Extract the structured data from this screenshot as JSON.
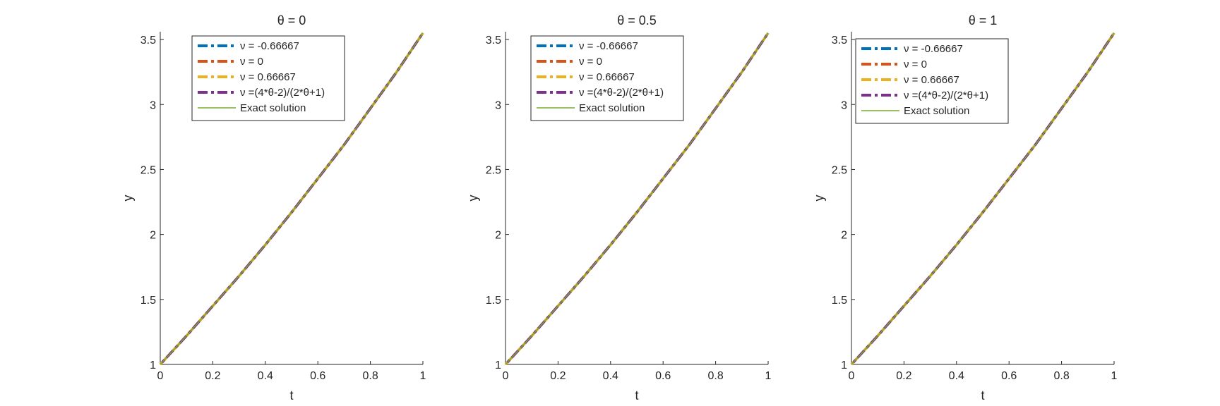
{
  "chart_data": [
    {
      "type": "line",
      "title": "θ = 0",
      "xlabel": "t",
      "ylabel": "y",
      "xlim": [
        0,
        1
      ],
      "ylim": [
        1,
        3.56
      ],
      "xticks": [
        0,
        0.2,
        0.4,
        0.6,
        0.8,
        1
      ],
      "xtick_labels": [
        "0",
        "0.2",
        "0.4",
        "0.6",
        "0.8",
        "1"
      ],
      "yticks": [
        1,
        1.5,
        2,
        2.5,
        3,
        3.5
      ],
      "ytick_labels": [
        "1",
        "1.5",
        "2",
        "2.5",
        "3",
        "3.5"
      ],
      "grid": false,
      "legend_position": "top",
      "x": [
        0,
        0.1,
        0.2,
        0.3,
        0.4,
        0.5,
        0.6,
        0.7,
        0.8,
        0.9,
        1.0
      ],
      "series": [
        {
          "name": "ν = -0.66667",
          "color": "#0072BD",
          "line_style": "dash-dot",
          "values": [
            1.0,
            1.22,
            1.45,
            1.68,
            1.92,
            2.17,
            2.43,
            2.69,
            2.97,
            3.25,
            3.55
          ]
        },
        {
          "name": "ν = 0",
          "color": "#D95319",
          "line_style": "dash-dot",
          "values": [
            1.0,
            1.22,
            1.45,
            1.68,
            1.92,
            2.17,
            2.43,
            2.69,
            2.97,
            3.25,
            3.55
          ]
        },
        {
          "name": "ν = 0.66667",
          "color": "#EDB120",
          "line_style": "dash-dot",
          "values": [
            1.0,
            1.22,
            1.45,
            1.68,
            1.92,
            2.17,
            2.43,
            2.69,
            2.97,
            3.25,
            3.55
          ]
        },
        {
          "name": "ν =(4*θ-2)/(2*θ+1)",
          "color": "#7E2F8E",
          "line_style": "dash-dot",
          "values": [
            1.0,
            1.22,
            1.45,
            1.68,
            1.92,
            2.17,
            2.43,
            2.69,
            2.97,
            3.25,
            3.55
          ]
        },
        {
          "name": "Exact solution",
          "color": "#77AC30",
          "line_style": "solid",
          "values": [
            1.0,
            1.22,
            1.45,
            1.68,
            1.92,
            2.17,
            2.43,
            2.69,
            2.97,
            3.25,
            3.55
          ]
        }
      ]
    },
    {
      "type": "line",
      "title": "θ = 0.5",
      "xlabel": "t",
      "ylabel": "y",
      "xlim": [
        0,
        1
      ],
      "ylim": [
        1,
        3.56
      ],
      "xticks": [
        0,
        0.2,
        0.4,
        0.6,
        0.8,
        1
      ],
      "xtick_labels": [
        "0",
        "0.2",
        "0.4",
        "0.6",
        "0.8",
        "1"
      ],
      "yticks": [
        1,
        1.5,
        2,
        2.5,
        3,
        3.5
      ],
      "ytick_labels": [
        "1",
        "1.5",
        "2",
        "2.5",
        "3",
        "3.5"
      ],
      "grid": false,
      "legend_position": "top",
      "x": [
        0,
        0.1,
        0.2,
        0.3,
        0.4,
        0.5,
        0.6,
        0.7,
        0.8,
        0.9,
        1.0
      ],
      "series": [
        {
          "name": "ν = -0.66667",
          "color": "#0072BD",
          "line_style": "dash-dot",
          "values": [
            1.0,
            1.22,
            1.45,
            1.68,
            1.92,
            2.17,
            2.43,
            2.69,
            2.97,
            3.25,
            3.55
          ]
        },
        {
          "name": "ν = 0",
          "color": "#D95319",
          "line_style": "dash-dot",
          "values": [
            1.0,
            1.22,
            1.45,
            1.68,
            1.92,
            2.17,
            2.43,
            2.69,
            2.97,
            3.25,
            3.55
          ]
        },
        {
          "name": "ν = 0.66667",
          "color": "#EDB120",
          "line_style": "dash-dot",
          "values": [
            1.0,
            1.22,
            1.45,
            1.68,
            1.92,
            2.17,
            2.43,
            2.69,
            2.97,
            3.25,
            3.55
          ]
        },
        {
          "name": "ν =(4*θ-2)/(2*θ+1)",
          "color": "#7E2F8E",
          "line_style": "dash-dot",
          "values": [
            1.0,
            1.22,
            1.45,
            1.68,
            1.92,
            2.17,
            2.43,
            2.69,
            2.97,
            3.25,
            3.55
          ]
        },
        {
          "name": "Exact solution",
          "color": "#77AC30",
          "line_style": "solid",
          "values": [
            1.0,
            1.22,
            1.45,
            1.68,
            1.92,
            2.17,
            2.43,
            2.69,
            2.97,
            3.25,
            3.55
          ]
        }
      ]
    },
    {
      "type": "line",
      "title": "θ = 1",
      "xlabel": "t",
      "ylabel": "y",
      "xlim": [
        0,
        1
      ],
      "ylim": [
        1,
        3.56
      ],
      "xticks": [
        0,
        0.2,
        0.4,
        0.6,
        0.8,
        1
      ],
      "xtick_labels": [
        "0",
        "0.2",
        "0.4",
        "0.6",
        "0.8",
        "1"
      ],
      "yticks": [
        1,
        1.5,
        2,
        2.5,
        3,
        3.5
      ],
      "ytick_labels": [
        "1",
        "1.5",
        "2",
        "2.5",
        "3",
        "3.5"
      ],
      "grid": false,
      "legend_position": "top-left",
      "x": [
        0,
        0.1,
        0.2,
        0.3,
        0.4,
        0.5,
        0.6,
        0.7,
        0.8,
        0.9,
        1.0
      ],
      "series": [
        {
          "name": "ν = -0.66667",
          "color": "#0072BD",
          "line_style": "dash-dot",
          "values": [
            1.0,
            1.22,
            1.45,
            1.68,
            1.92,
            2.17,
            2.43,
            2.69,
            2.97,
            3.25,
            3.55
          ]
        },
        {
          "name": "ν = 0",
          "color": "#D95319",
          "line_style": "dash-dot",
          "values": [
            1.0,
            1.22,
            1.45,
            1.68,
            1.92,
            2.17,
            2.43,
            2.69,
            2.97,
            3.25,
            3.55
          ]
        },
        {
          "name": "ν = 0.66667",
          "color": "#EDB120",
          "line_style": "dash-dot",
          "values": [
            1.0,
            1.22,
            1.45,
            1.68,
            1.92,
            2.17,
            2.43,
            2.69,
            2.97,
            3.25,
            3.55
          ]
        },
        {
          "name": "ν =(4*θ-2)/(2*θ+1)",
          "color": "#7E2F8E",
          "line_style": "dash-dot",
          "values": [
            1.0,
            1.22,
            1.45,
            1.68,
            1.92,
            2.17,
            2.43,
            2.69,
            2.97,
            3.25,
            3.55
          ]
        },
        {
          "name": "Exact solution",
          "color": "#77AC30",
          "line_style": "solid",
          "values": [
            1.0,
            1.22,
            1.45,
            1.68,
            1.92,
            2.17,
            2.43,
            2.69,
            2.97,
            3.25,
            3.55
          ]
        }
      ]
    }
  ]
}
